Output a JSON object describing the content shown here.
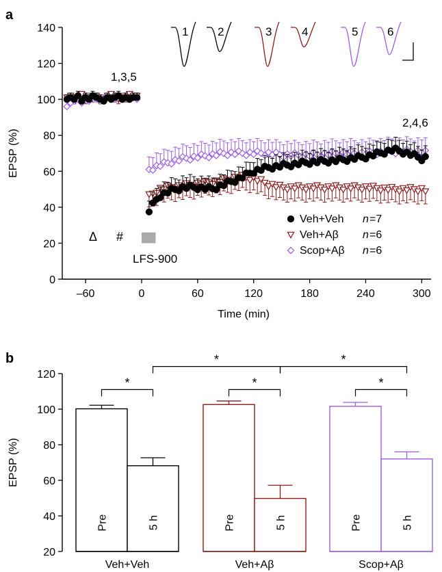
{
  "panels": {
    "a": "a",
    "b": "b"
  },
  "chart_data": [
    {
      "type": "line",
      "panel": "a",
      "xlabel": "Time (min)",
      "ylabel": "EPSP (%)",
      "xlim": [
        -85,
        310
      ],
      "ylim": [
        0,
        140
      ],
      "xticks": [
        "–60",
        "0",
        "60",
        "120",
        "180",
        "240",
        "300"
      ],
      "xtick_values": [
        -60,
        0,
        60,
        120,
        180,
        240,
        300
      ],
      "yticks": [
        "0",
        "20",
        "40",
        "60",
        "80",
        "100",
        "120",
        "140"
      ],
      "ytick_values": [
        0,
        20,
        40,
        60,
        80,
        100,
        120,
        140
      ],
      "grid": false,
      "legend_position": "bottom-right",
      "series": [
        {
          "name": "Veh+Veh",
          "n_label": "n",
          "n_value": "=7",
          "marker": "filled-circle",
          "color": "#000000",
          "baseline": [
            100,
            101,
            100,
            102,
            99,
            101,
            100,
            102,
            101,
            100,
            99,
            101,
            100,
            101,
            102,
            100,
            101,
            100,
            101,
            101
          ],
          "baseline_err": 2.5,
          "post_anchors": [
            [
              8,
              38
            ],
            [
              18,
              46
            ],
            [
              30,
              49
            ],
            [
              45,
              51
            ],
            [
              60,
              51
            ],
            [
              75,
              50
            ],
            [
              90,
              53
            ],
            [
              105,
              56
            ],
            [
              120,
              60
            ],
            [
              135,
              62
            ],
            [
              150,
              63
            ],
            [
              180,
              65
            ],
            [
              210,
              66
            ],
            [
              240,
              68
            ],
            [
              255,
              70
            ],
            [
              270,
              72
            ],
            [
              285,
              70
            ],
            [
              300,
              67
            ],
            [
              307,
              68
            ]
          ],
          "post_err": 6
        },
        {
          "name": "Veh+Aβ",
          "n_label": "n",
          "n_value": "=6",
          "marker": "open-triangle-down",
          "color": "#8b1a1a",
          "baseline": [
            101,
            102,
            100,
            101,
            103,
            100,
            102,
            101,
            102,
            100,
            101,
            102,
            103,
            101,
            100,
            102,
            101,
            103,
            102,
            102
          ],
          "baseline_err": 2.5,
          "post_anchors": [
            [
              8,
              46
            ],
            [
              18,
              50
            ],
            [
              30,
              51
            ],
            [
              45,
              52
            ],
            [
              60,
              53
            ],
            [
              75,
              54
            ],
            [
              90,
              55
            ],
            [
              105,
              57
            ],
            [
              120,
              56
            ],
            [
              135,
              53
            ],
            [
              150,
              51
            ],
            [
              180,
              51
            ],
            [
              210,
              51
            ],
            [
              240,
              51
            ],
            [
              270,
              50
            ],
            [
              300,
              50
            ],
            [
              307,
              49
            ]
          ],
          "post_err": 7
        },
        {
          "name": "Scop+Aβ",
          "n_label": "n",
          "n_value": "=6",
          "marker": "open-diamond",
          "color": "#9b5de5",
          "baseline": [
            96,
            98,
            99,
            100,
            98,
            100,
            99,
            101,
            100,
            99,
            100,
            101,
            100,
            100,
            101,
            100,
            101,
            100,
            101,
            100
          ],
          "baseline_err": 2.5,
          "post_anchors": [
            [
              8,
              61
            ],
            [
              18,
              63
            ],
            [
              30,
              65
            ],
            [
              45,
              67
            ],
            [
              60,
              68
            ],
            [
              75,
              69
            ],
            [
              90,
              70
            ],
            [
              105,
              70
            ],
            [
              120,
              70
            ],
            [
              135,
              70
            ],
            [
              150,
              69
            ],
            [
              180,
              69
            ],
            [
              210,
              70
            ],
            [
              240,
              70
            ],
            [
              270,
              71
            ],
            [
              300,
              71
            ],
            [
              307,
              70
            ]
          ],
          "post_err": 7
        }
      ],
      "annotations": {
        "baseline_label": "1,3,5",
        "end_label": "2,4,6",
        "delta_symbol": "Δ",
        "hash_symbol": "#",
        "lfs_label": "LFS-900",
        "lfs_bar_range": [
          0,
          15
        ],
        "lfs_bar_y": [
          20,
          26
        ]
      },
      "inset_traces": [
        {
          "label": "1",
          "color": "#000000",
          "depth": 1.0
        },
        {
          "label": "2",
          "color": "#000000",
          "depth": 0.62
        },
        {
          "label": "3",
          "color": "#8b1a1a",
          "depth": 1.0
        },
        {
          "label": "4",
          "color": "#8b1a1a",
          "depth": 0.5
        },
        {
          "label": "5",
          "color": "#9b5de5",
          "depth": 1.0
        },
        {
          "label": "6",
          "color": "#9b5de5",
          "depth": 0.7
        }
      ]
    },
    {
      "type": "bar",
      "panel": "b",
      "ylabel": "EPSP (%)",
      "ylim": [
        20,
        120
      ],
      "yticks": [
        "20",
        "40",
        "60",
        "80",
        "100",
        "120"
      ],
      "ytick_values": [
        20,
        40,
        60,
        80,
        100,
        120
      ],
      "grid": false,
      "groups": [
        {
          "name": "Veh+Veh",
          "color": "#000000",
          "bars": [
            {
              "label": "Pre",
              "value": 100.2,
              "err": 2.0
            },
            {
              "label": "5 h",
              "value": 68.2,
              "err": 4.5
            }
          ]
        },
        {
          "name": "Veh+Aβ",
          "color": "#8b1a1a",
          "bars": [
            {
              "label": "Pre",
              "value": 102.6,
              "err": 2.0
            },
            {
              "label": "5 h",
              "value": 49.8,
              "err": 7.4
            }
          ]
        },
        {
          "name": "Scop+Aβ",
          "color": "#9b5de5",
          "bars": [
            {
              "label": "Pre",
              "value": 101.6,
              "err": 2.2
            },
            {
              "label": "5 h",
              "value": 72.0,
              "err": 4.0
            }
          ]
        }
      ],
      "significance": [
        {
          "from": [
            0,
            0
          ],
          "to": [
            0,
            1
          ],
          "label": "*",
          "y": 111
        },
        {
          "from": [
            1,
            0
          ],
          "to": [
            1,
            1
          ],
          "label": "*",
          "y": 111
        },
        {
          "from": [
            2,
            0
          ],
          "to": [
            2,
            1
          ],
          "label": "*",
          "y": 111
        },
        {
          "from": [
            0,
            1
          ],
          "to": [
            1,
            1
          ],
          "label": "*",
          "y": 124
        },
        {
          "from": [
            1,
            1
          ],
          "to": [
            2,
            1
          ],
          "label": "*",
          "y": 124
        }
      ]
    }
  ]
}
